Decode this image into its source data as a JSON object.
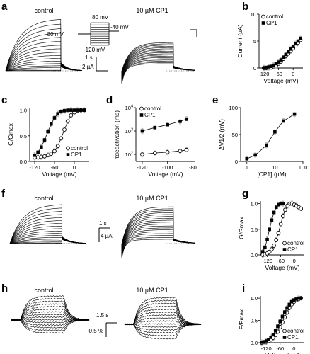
{
  "panels": {
    "a": {
      "label": "a",
      "control_caption": "control",
      "cp1_caption": "10 µM CP1",
      "protocol": {
        "v_top": "80 mV",
        "v_hold": "-80 mV",
        "v_bottom": "-120 mV",
        "v_tail": "-40 mV"
      },
      "scale_time": "1 s",
      "scale_current": "2 µA"
    },
    "b": {
      "label": "b"
    },
    "c": {
      "label": "c"
    },
    "d": {
      "label": "d"
    },
    "e": {
      "label": "e"
    },
    "f": {
      "label": "f",
      "control_caption": "control",
      "cp1_caption": "10 µM CP1",
      "scale_time": "1 s",
      "scale_current": "4 µA"
    },
    "g": {
      "label": "g"
    },
    "h": {
      "label": "h",
      "control_caption": "control",
      "cp1_caption": "10 µM CP1",
      "scale_time": "1.5 s",
      "scale_fluor": "0.5 %"
    },
    "i": {
      "label": "i"
    }
  },
  "chart_data": [
    {
      "id": "b",
      "type": "scatter",
      "xlabel": "Voltage (mV)",
      "ylabel": "Current (µA)",
      "xlim": [
        -140,
        40
      ],
      "ylim": [
        0,
        10
      ],
      "xticks": [
        -120,
        -60,
        0
      ],
      "yticks": [
        0,
        5,
        10
      ],
      "legend": [
        "control",
        "CP1"
      ],
      "series": [
        {
          "name": "control",
          "marker": "open",
          "x": [
            -120,
            -110,
            -100,
            -90,
            -80,
            -70,
            -60,
            -50,
            -40,
            -30,
            -20,
            -10,
            0,
            10,
            20,
            30
          ],
          "y": [
            0.0,
            0.0,
            0.1,
            0.1,
            0.3,
            0.5,
            0.8,
            1.2,
            1.7,
            2.2,
            2.7,
            3.2,
            3.7,
            4.2,
            4.7,
            5.2
          ]
        },
        {
          "name": "CP1",
          "marker": "filled",
          "x": [
            -120,
            -110,
            -100,
            -90,
            -80,
            -70,
            -60,
            -50,
            -40,
            -30,
            -20,
            -10,
            0,
            10,
            20,
            30
          ],
          "y": [
            0.0,
            0.1,
            0.2,
            0.3,
            0.5,
            0.8,
            1.1,
            1.5,
            2.0,
            2.5,
            3.0,
            3.5,
            4.0,
            4.5,
            5.0,
            5.5
          ]
        }
      ]
    },
    {
      "id": "c",
      "type": "scatter",
      "xlabel": "Voltage (mV)",
      "ylabel": "G/Gmax",
      "xlim": [
        -135,
        45
      ],
      "ylim": [
        0,
        1.05
      ],
      "xticks": [
        -120,
        -60,
        0
      ],
      "yticks": [
        0.0,
        0.5,
        1.0
      ],
      "legend": [
        "control",
        "CP1"
      ],
      "series": [
        {
          "name": "control",
          "marker": "open",
          "x": [
            -120,
            -110,
            -100,
            -90,
            -80,
            -70,
            -60,
            -50,
            -40,
            -30,
            -20,
            -10,
            0,
            10,
            20,
            30
          ],
          "y": [
            0.08,
            0.08,
            0.09,
            0.1,
            0.12,
            0.15,
            0.2,
            0.3,
            0.45,
            0.62,
            0.78,
            0.9,
            0.96,
            0.99,
            1.0,
            1.0
          ]
        },
        {
          "name": "CP1",
          "marker": "filled",
          "x": [
            -120,
            -110,
            -100,
            -90,
            -80,
            -70,
            -60,
            -50,
            -40,
            -30,
            -20,
            -10,
            0,
            10,
            20,
            30
          ],
          "y": [
            0.12,
            0.18,
            0.28,
            0.42,
            0.58,
            0.73,
            0.85,
            0.93,
            0.97,
            0.99,
            1.0,
            1.0,
            1.0,
            1.0,
            1.0,
            1.0
          ]
        }
      ]
    },
    {
      "id": "d",
      "type": "scatter",
      "xlabel": "Voltage (mV)",
      "ylabel": "τdeactivation (ms)",
      "log_y": true,
      "xlim": [
        -125,
        -78
      ],
      "ylim": [
        50,
        10000
      ],
      "xticks": [
        -120,
        -100,
        -80
      ],
      "ytick_labels": [
        {
          "v": 100,
          "base": "10",
          "exp": "2"
        },
        {
          "v": 1000,
          "base": "10",
          "exp": "3"
        },
        {
          "v": 10000,
          "base": "10",
          "exp": "4"
        }
      ],
      "legend": [
        "control",
        "CP1"
      ],
      "series": [
        {
          "name": "control",
          "marker": "open",
          "x": [
            -120,
            -110,
            -100,
            -90,
            -85
          ],
          "y": [
            100,
            115,
            125,
            140,
            155
          ]
        },
        {
          "name": "CP1",
          "marker": "filled",
          "x": [
            -120,
            -110,
            -100,
            -90,
            -85
          ],
          "y": [
            1000,
            1400,
            1850,
            2600,
            3200
          ]
        }
      ]
    },
    {
      "id": "e",
      "type": "scatter",
      "xlabel": "[CP1] (µM)",
      "ylabel": "ΔV1/2 (mV)",
      "log_x": true,
      "inverted_y": true,
      "xlim": [
        0.6,
        100
      ],
      "ylim": [
        0,
        -100
      ],
      "xticks": [
        1,
        10,
        100
      ],
      "yticks": [
        0,
        -50,
        -100
      ],
      "series": [
        {
          "name": "",
          "marker": "filled",
          "x": [
            1,
            2,
            5,
            10,
            20,
            50
          ],
          "y": [
            -5,
            -12,
            -30,
            -55,
            -75,
            -88
          ]
        }
      ]
    },
    {
      "id": "g",
      "type": "scatter",
      "xlabel": "Voltage (mV)",
      "ylabel": "G/Gmax",
      "xlim": [
        -150,
        45
      ],
      "ylim": [
        0,
        1.05
      ],
      "xticks": [
        -120,
        -60,
        0
      ],
      "yticks": [
        0.0,
        0.5,
        1.0
      ],
      "legend": [
        "control",
        "CP1"
      ],
      "series": [
        {
          "name": "control",
          "marker": "open",
          "x": [
            -140,
            -130,
            -120,
            -110,
            -100,
            -90,
            -80,
            -70,
            -60,
            -50,
            -40,
            -30,
            -20,
            -10,
            0,
            10,
            20,
            30
          ],
          "y": [
            0.0,
            0.01,
            0.03,
            0.06,
            0.11,
            0.18,
            0.29,
            0.43,
            0.6,
            0.76,
            0.88,
            0.96,
            1.0,
            1.0,
            0.98,
            0.96,
            0.93,
            0.9
          ]
        },
        {
          "name": "CP1",
          "marker": "filled",
          "x": [
            -140,
            -130,
            -120,
            -110,
            -100,
            -90,
            -80,
            -70,
            -60,
            -50
          ],
          "y": [
            0.06,
            0.15,
            0.3,
            0.5,
            0.68,
            0.83,
            0.93,
            0.98,
            1.0,
            1.0
          ]
        }
      ]
    },
    {
      "id": "i",
      "type": "scatter",
      "xlabel": "Voltage (mV)",
      "ylabel": "F/Fmax",
      "xlim": [
        -145,
        45
      ],
      "ylim": [
        0,
        1.05
      ],
      "xticks": [
        -120,
        -60,
        0
      ],
      "yticks": [
        0.0,
        0.5,
        1.0
      ],
      "legend": [
        "control",
        "CP1"
      ],
      "series": [
        {
          "name": "control",
          "marker": "open",
          "x": [
            -140,
            -130,
            -120,
            -110,
            -100,
            -90,
            -80,
            -70,
            -60,
            -50,
            -40,
            -30,
            -20,
            -10,
            0,
            10,
            20,
            30
          ],
          "y": [
            0.0,
            0.01,
            0.02,
            0.04,
            0.07,
            0.11,
            0.17,
            0.25,
            0.35,
            0.46,
            0.57,
            0.68,
            0.78,
            0.86,
            0.92,
            0.96,
            0.98,
            1.0
          ]
        },
        {
          "name": "CP1",
          "marker": "filled",
          "x": [
            -140,
            -130,
            -120,
            -110,
            -100,
            -90,
            -80,
            -70,
            -60,
            -50,
            -40,
            -30,
            -20,
            -10,
            0,
            10,
            20,
            30
          ],
          "y": [
            0.01,
            0.02,
            0.04,
            0.07,
            0.12,
            0.18,
            0.27,
            0.37,
            0.48,
            0.59,
            0.69,
            0.78,
            0.86,
            0.92,
            0.96,
            0.98,
            1.0,
            1.0
          ]
        }
      ]
    }
  ]
}
